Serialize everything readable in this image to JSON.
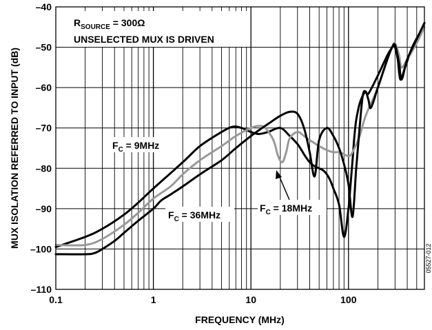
{
  "chart_data": {
    "type": "line",
    "xlabel": "FREQUENCY (MHz)",
    "ylabel": "MUX ISOLATION REFERRED TO INPUT (dB)",
    "x_scale": "log",
    "xlim": [
      0.1,
      600
    ],
    "ylim": [
      -110,
      -40
    ],
    "x_ticks": [
      0.1,
      1,
      10,
      100
    ],
    "x_tick_labels": [
      "0.1",
      "1",
      "10",
      "100"
    ],
    "y_ticks": [
      -40,
      -50,
      -60,
      -70,
      -80,
      -90,
      -100,
      -110
    ],
    "y_tick_labels": [
      "–40",
      "–50",
      "–60",
      "–70",
      "–80",
      "–90",
      "–100",
      "–110"
    ],
    "grid": true,
    "conditions": [
      {
        "main": "R",
        "sub": "SOURCE",
        "rest": " = 300Ω"
      },
      {
        "main": "UNSELECTED MUX IS DRIVEN",
        "sub": "",
        "rest": ""
      }
    ],
    "annotations": [
      {
        "main": "F",
        "sub": "C",
        "rest": " = 9MHz"
      },
      {
        "main": "F",
        "sub": "C",
        "rest": " = 36MHz"
      },
      {
        "main": "F",
        "sub": "C",
        "rest": " = 18MHz"
      }
    ],
    "figure_id": "05527-012",
    "series": [
      {
        "color": "#000000",
        "x": [
          0.1,
          0.2,
          0.3,
          0.5,
          0.7,
          1,
          2,
          3,
          5,
          6.5,
          8,
          10,
          12,
          15,
          20,
          25,
          30,
          33,
          36,
          40,
          45,
          50,
          55,
          60,
          65,
          70,
          80,
          90,
          100,
          105,
          110,
          115,
          120,
          130,
          140,
          150,
          160,
          200,
          250,
          280,
          290,
          300,
          320,
          340,
          380,
          450,
          550,
          600
        ],
        "y": [
          -99.5,
          -97,
          -95,
          -91.5,
          -88.5,
          -85,
          -78.5,
          -74.5,
          -71,
          -69.7,
          -70,
          -71,
          -71.5,
          -71,
          -70,
          -72,
          -74,
          -75.5,
          -77,
          -78.5,
          -79.5,
          -80,
          -80.5,
          -81.5,
          -83,
          -85,
          -89,
          -97,
          -90,
          -84,
          -78,
          -72,
          -68,
          -64,
          -62,
          -61,
          -61.5,
          -57,
          -52,
          -50,
          -49.5,
          -50,
          -53,
          -58,
          -55,
          -50,
          -46,
          -44
        ]
      },
      {
        "color": "#999999",
        "x": [
          0.1,
          0.2,
          0.3,
          0.5,
          0.7,
          1,
          1.5,
          2,
          3,
          5,
          7,
          10,
          12,
          14,
          17,
          19,
          21,
          23,
          25,
          30,
          35,
          40,
          50,
          60,
          70,
          80,
          90,
          100,
          110,
          130,
          150,
          200,
          250,
          280,
          300,
          330,
          350,
          400,
          500,
          600
        ],
        "y": [
          -99,
          -99,
          -97.5,
          -94,
          -91,
          -87.5,
          -84.5,
          -81.5,
          -78,
          -74.5,
          -72,
          -70,
          -69.5,
          -70,
          -73,
          -77,
          -78.5,
          -76,
          -72.5,
          -71,
          -72,
          -73,
          -74.5,
          -75.5,
          -76,
          -76,
          -76.5,
          -77,
          -76,
          -72,
          -67,
          -60,
          -53,
          -50,
          -49,
          -52,
          -55,
          -53,
          -49,
          -45
        ]
      },
      {
        "color": "#000000",
        "x": [
          0.1,
          0.2,
          0.25,
          0.3,
          0.4,
          0.5,
          0.7,
          1,
          1.2,
          1.5,
          2,
          3,
          5,
          7,
          10,
          15,
          20,
          25,
          30,
          35,
          40,
          45,
          50,
          60,
          70,
          80,
          90,
          100,
          110,
          120,
          130,
          140,
          150,
          160,
          170,
          200,
          250,
          280,
          300,
          330,
          350,
          400,
          500,
          600
        ],
        "y": [
          -101.3,
          -101.3,
          -101,
          -100,
          -98,
          -96,
          -93,
          -90,
          -88,
          -86.5,
          -84.5,
          -81.5,
          -78,
          -75,
          -72,
          -69,
          -67,
          -66,
          -66.5,
          -70,
          -76,
          -82,
          -73,
          -70,
          -72,
          -75,
          -79,
          -84,
          -92,
          -80,
          -70,
          -62,
          -61,
          -63,
          -65,
          -60,
          -53,
          -50,
          -49.5,
          -54,
          -58,
          -53,
          -48,
          -44
        ]
      }
    ]
  }
}
